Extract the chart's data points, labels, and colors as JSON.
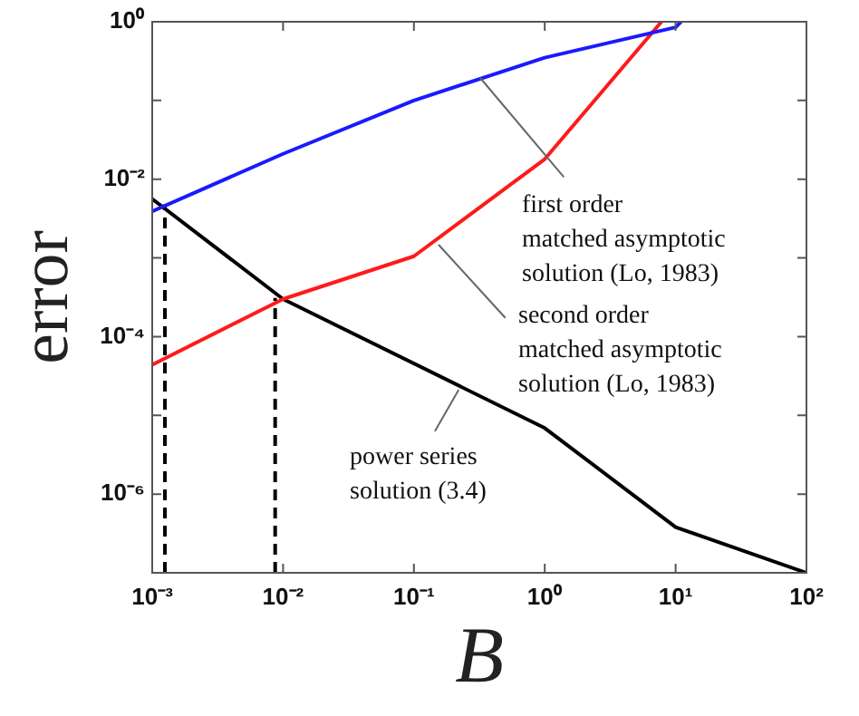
{
  "chart_data": {
    "type": "line",
    "xlabel": "B",
    "ylabel": "error",
    "log": "xy",
    "grid": false,
    "legend": false,
    "xlim": [
      0.001,
      100
    ],
    "ylim": [
      1e-07,
      1
    ],
    "xticks": [
      {
        "value": 0.001,
        "label": "10⁻³"
      },
      {
        "value": 0.01,
        "label": "10⁻²"
      },
      {
        "value": 0.1,
        "label": "10⁻¹"
      },
      {
        "value": 1,
        "label": "10⁰"
      },
      {
        "value": 10,
        "label": "10¹"
      },
      {
        "value": 100,
        "label": "10²"
      }
    ],
    "yticks": [
      {
        "value": 1e-07,
        "label": null
      },
      {
        "value": 1e-06,
        "label": "10⁻⁶"
      },
      {
        "value": 1e-05,
        "label": null
      },
      {
        "value": 0.0001,
        "label": "10⁻⁴"
      },
      {
        "value": 0.001,
        "label": null
      },
      {
        "value": 0.01,
        "label": "10⁻²"
      },
      {
        "value": 0.1,
        "label": null
      },
      {
        "value": 1,
        "label": "10⁰"
      }
    ],
    "series": [
      {
        "color": "#1a1aff",
        "x": [
          0.001,
          0.01,
          0.1,
          1,
          10,
          11
        ],
        "values": [
          0.0039,
          0.021,
          0.1,
          0.35,
          0.85,
          1
        ]
      },
      {
        "color": "#ff1a1a",
        "x": [
          0.001,
          0.01,
          0.1,
          1,
          7.8
        ],
        "values": [
          4.4e-05,
          0.0003,
          0.00105,
          0.018,
          1
        ]
      },
      {
        "color": "#000000",
        "x": [
          0.001,
          0.01,
          1,
          10,
          100
        ],
        "values": [
          0.0056,
          0.0003,
          6.9e-06,
          3.8e-07,
          1e-07
        ]
      },
      {
        "color": "#000000",
        "line_style": "dashed",
        "x": [
          0.00125,
          0.00125
        ],
        "values": [
          1e-07,
          0.0048
        ]
      },
      {
        "color": "#000000",
        "line_style": "dashed",
        "x": [
          0.0087,
          0.0087
        ],
        "values": [
          1e-07,
          0.00031
        ]
      }
    ],
    "annotations": [
      {
        "text": "first order\nmatched asymptotic\nsolution (Lo, 1983)",
        "x": 0.32,
        "y": 0.19
      },
      {
        "text": "second order\nmatched asymptotic\nsolution (Lo, 1983)",
        "x": 0.155,
        "y": 0.0015
      },
      {
        "text": "power series\nsolution (3.4)",
        "x": 0.22,
        "y": 2.1e-05
      }
    ]
  }
}
